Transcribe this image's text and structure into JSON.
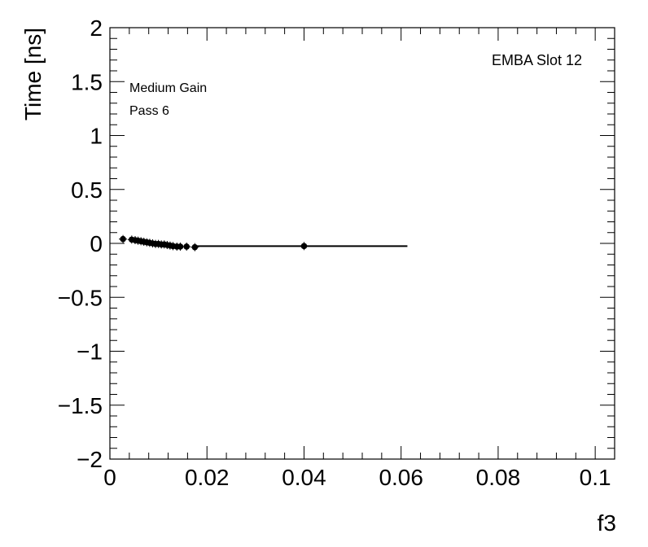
{
  "chart_data": {
    "type": "scatter",
    "title": "",
    "xlabel": "f3",
    "ylabel": "Time [ns]",
    "xlim": [
      0,
      0.104
    ],
    "ylim": [
      -2,
      2
    ],
    "grid": false,
    "x_ticks": [
      0,
      0.02,
      0.04,
      0.06,
      0.08,
      0.1
    ],
    "x_tick_labels": [
      "0",
      "0.02",
      "0.04",
      "0.06",
      "0.08",
      "0.1"
    ],
    "y_ticks": [
      -2,
      -1.5,
      -1,
      -0.5,
      0,
      0.5,
      1,
      1.5,
      2
    ],
    "y_tick_labels": [
      "−2",
      "−1.5",
      "−1",
      "−0.5",
      "0",
      "0.5",
      "1",
      "1.5",
      "2"
    ],
    "annotations": {
      "top_right": "EMBA Slot 12",
      "line1": "Medium Gain",
      "line2": "Pass 6"
    },
    "series": [
      {
        "points": [
          {
            "x": 0.0027,
            "y": 0.04
          },
          {
            "x": 0.0045,
            "y": 0.035
          },
          {
            "x": 0.0052,
            "y": 0.03
          },
          {
            "x": 0.0058,
            "y": 0.025
          },
          {
            "x": 0.0064,
            "y": 0.02
          },
          {
            "x": 0.007,
            "y": 0.015
          },
          {
            "x": 0.0076,
            "y": 0.01
          },
          {
            "x": 0.0082,
            "y": 0.005
          },
          {
            "x": 0.0088,
            "y": 0.0
          },
          {
            "x": 0.0094,
            "y": -0.005
          },
          {
            "x": 0.01,
            "y": -0.005
          },
          {
            "x": 0.0106,
            "y": -0.01
          },
          {
            "x": 0.0112,
            "y": -0.01
          },
          {
            "x": 0.0118,
            "y": -0.015
          },
          {
            "x": 0.0124,
            "y": -0.02
          },
          {
            "x": 0.013,
            "y": -0.025
          },
          {
            "x": 0.0138,
            "y": -0.03
          },
          {
            "x": 0.0145,
            "y": -0.03
          },
          {
            "x": 0.0158,
            "y": -0.03
          },
          {
            "x": 0.0175,
            "y": -0.035
          },
          {
            "x": 0.04,
            "y": -0.025
          }
        ]
      }
    ],
    "fit_line": {
      "x": [
        0.0175,
        0.0613
      ],
      "y": [
        -0.025,
        -0.025
      ]
    }
  }
}
